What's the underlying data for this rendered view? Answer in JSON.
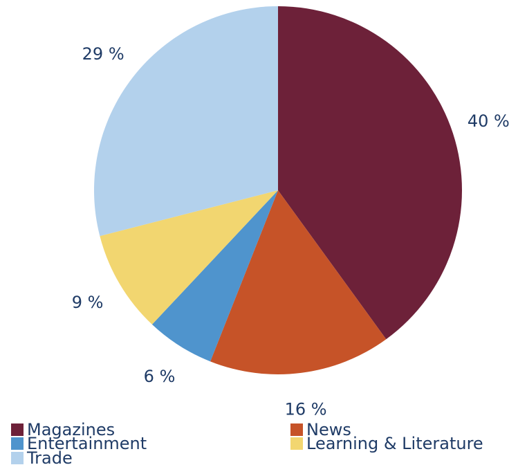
{
  "chart_data": {
    "type": "pie",
    "start_angle": "12 o'clock",
    "direction": "clockwise",
    "legend_position": "bottom",
    "slices": [
      {
        "name": "Magazines",
        "value": 40,
        "label": "40 %",
        "color": "#6d2139"
      },
      {
        "name": "News",
        "value": 16,
        "label": "16 %",
        "color": "#c65328"
      },
      {
        "name": "Entertainment",
        "value": 6,
        "label": "6 %",
        "color": "#4f94cd"
      },
      {
        "name": "Learning & Literature",
        "value": 9,
        "label": "9 %",
        "color": "#f2d670"
      },
      {
        "name": "Trade",
        "value": 29,
        "label": "29 %",
        "color": "#b3d1ec"
      }
    ]
  }
}
